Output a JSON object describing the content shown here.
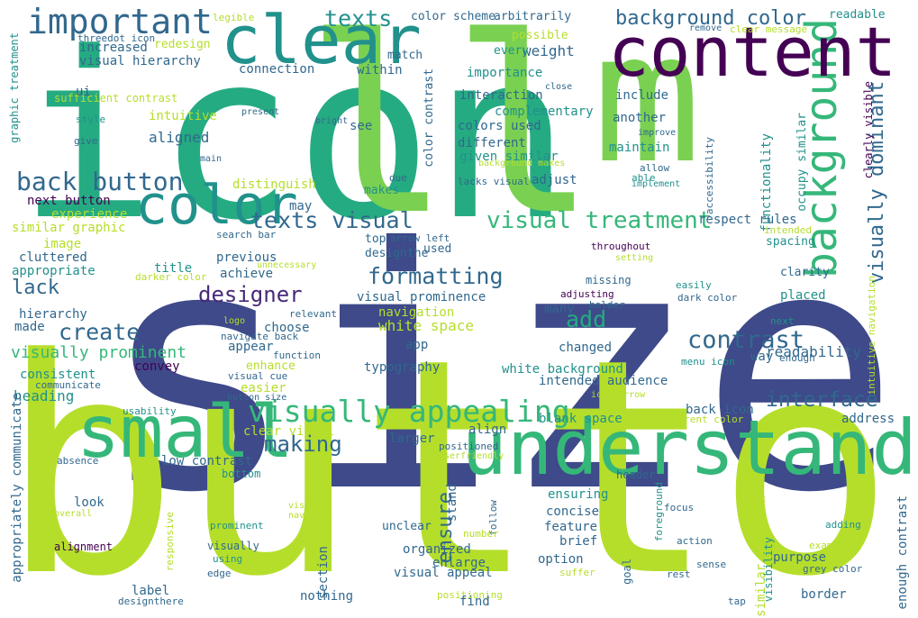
{
  "words": [
    {
      "text": "size",
      "color": "#3e4a89"
    },
    {
      "text": "button",
      "color": "#b5de2b"
    },
    {
      "text": "icon",
      "color": "#25ab82"
    },
    {
      "text": "ll",
      "color": "#7ad151"
    },
    {
      "text": "m",
      "color": "#7ad151"
    },
    {
      "text": "understand",
      "color": "#35b779"
    },
    {
      "text": "background",
      "color": "#35b779"
    },
    {
      "text": "content",
      "color": "#440154"
    },
    {
      "text": "clear",
      "color": "#21918c"
    },
    {
      "text": "small",
      "color": "#35b779"
    },
    {
      "text": "color",
      "color": "#21918c"
    },
    {
      "text": "important",
      "color": "#31688e"
    },
    {
      "text": "visually appealing",
      "color": "#35b779"
    },
    {
      "text": "back button",
      "color": "#31688e"
    },
    {
      "text": "visual treatment",
      "color": "#35b779"
    },
    {
      "text": "texts visual",
      "color": "#31688e"
    },
    {
      "text": "designer",
      "color": "#482878"
    },
    {
      "text": "formatting",
      "color": "#31688e"
    },
    {
      "text": "contrast",
      "color": "#31688e"
    },
    {
      "text": "create",
      "color": "#31688e"
    },
    {
      "text": "texts",
      "color": "#21918c"
    },
    {
      "text": "background color",
      "color": "#31688e"
    },
    {
      "text": "visually dominant",
      "color": "#31688e"
    },
    {
      "text": "interface",
      "color": "#31688e"
    },
    {
      "text": "add",
      "color": "#25ab82"
    },
    {
      "text": "making",
      "color": "#31688e"
    },
    {
      "text": "ensure",
      "color": "#31688e"
    },
    {
      "text": "lack",
      "color": "#31688e"
    },
    {
      "text": "visually prominent",
      "color": "#35b779"
    },
    {
      "text": "readability",
      "color": "#31688e"
    },
    {
      "text": "heading",
      "color": "#21918c"
    },
    {
      "text": "weight",
      "color": "#31688e"
    },
    {
      "text": "navigation",
      "color": "#b5de2b"
    },
    {
      "text": "white space",
      "color": "#b5de2b"
    },
    {
      "text": "aligned",
      "color": "#31688e"
    },
    {
      "text": "visual hierarchy",
      "color": "#31688e"
    },
    {
      "text": "increased",
      "color": "#31688e"
    },
    {
      "text": "redesign",
      "color": "#b5de2b"
    },
    {
      "text": "sufficient contrast",
      "color": "#b5de2b"
    },
    {
      "text": "threedot icon",
      "color": "#31688e"
    },
    {
      "text": "legible",
      "color": "#b5de2b"
    },
    {
      "text": "color scheme",
      "color": "#31688e"
    },
    {
      "text": "arbitrarily",
      "color": "#31688e"
    },
    {
      "text": "readable",
      "color": "#21918c"
    },
    {
      "text": "remove",
      "color": "#31688e"
    },
    {
      "text": "clear message",
      "color": "#b5de2b"
    },
    {
      "text": "possible",
      "color": "#b5de2b"
    },
    {
      "text": "match",
      "color": "#31688e"
    },
    {
      "text": "every",
      "color": "#21918c"
    },
    {
      "text": "connection",
      "color": "#31688e"
    },
    {
      "text": "within",
      "color": "#31688e"
    },
    {
      "text": "importance",
      "color": "#21918c"
    },
    {
      "text": "include",
      "color": "#31688e"
    },
    {
      "text": "close",
      "color": "#31688e"
    },
    {
      "text": "interaction",
      "color": "#31688e"
    },
    {
      "text": "ui",
      "color": "#31688e"
    },
    {
      "text": "complementary",
      "color": "#21918c"
    },
    {
      "text": "intuitive",
      "color": "#b5de2b"
    },
    {
      "text": "present",
      "color": "#31688e"
    },
    {
      "text": "style",
      "color": "#21918c"
    },
    {
      "text": "give",
      "color": "#31688e"
    },
    {
      "text": "bright",
      "color": "#31688e"
    },
    {
      "text": "see",
      "color": "#31688e"
    },
    {
      "text": "colors used",
      "color": "#31688e"
    },
    {
      "text": "another",
      "color": "#31688e"
    },
    {
      "text": "improve",
      "color": "#31688e"
    },
    {
      "text": "main",
      "color": "#31688e"
    },
    {
      "text": "color contrast",
      "color": "#31688e"
    },
    {
      "text": "different",
      "color": "#31688e"
    },
    {
      "text": "given similar",
      "color": "#21918c"
    },
    {
      "text": "background makes",
      "color": "#b5de2b"
    },
    {
      "text": "maintain",
      "color": "#21918c"
    },
    {
      "text": "able",
      "color": "#21918c"
    },
    {
      "text": "allow",
      "color": "#31688e"
    },
    {
      "text": "implement",
      "color": "#21918c"
    },
    {
      "text": "distinguish",
      "color": "#b5de2b"
    },
    {
      "text": "due",
      "color": "#31688e"
    },
    {
      "text": "lacks visual",
      "color": "#31688e"
    },
    {
      "text": "adjust",
      "color": "#31688e"
    },
    {
      "text": "makes",
      "color": "#21918c"
    },
    {
      "text": "next button",
      "color": "#440154"
    },
    {
      "text": "experience",
      "color": "#b5de2b"
    },
    {
      "text": "may",
      "color": "#31688e"
    },
    {
      "text": "similar graphic",
      "color": "#b5de2b"
    },
    {
      "text": "image",
      "color": "#b5de2b"
    },
    {
      "text": "search bar",
      "color": "#31688e"
    },
    {
      "text": "top",
      "color": "#31688e"
    },
    {
      "text": "arrow left",
      "color": "#31688e"
    },
    {
      "text": "designthe",
      "color": "#31688e"
    },
    {
      "text": "used",
      "color": "#31688e"
    },
    {
      "text": "throughout",
      "color": "#440154"
    },
    {
      "text": "setting",
      "color": "#b5de2b"
    },
    {
      "text": "respect rules",
      "color": "#31688e"
    },
    {
      "text": "spacing",
      "color": "#21918c"
    },
    {
      "text": "functionality",
      "color": "#21918c"
    },
    {
      "text": "occupy similar",
      "color": "#21918c"
    },
    {
      "text": "clearly visible",
      "color": "#440154"
    },
    {
      "text": "intended",
      "color": "#b5de2b"
    },
    {
      "text": "intuitive navigation",
      "color": "#b5de2b"
    },
    {
      "text": "accessibility",
      "color": "#31688e"
    },
    {
      "text": "appropriate",
      "color": "#21918c"
    },
    {
      "text": "title",
      "color": "#21918c"
    },
    {
      "text": "previous",
      "color": "#31688e"
    },
    {
      "text": "cluttered",
      "color": "#31688e"
    },
    {
      "text": "darker color",
      "color": "#b5de2b"
    },
    {
      "text": "unnecessary",
      "color": "#b5de2b"
    },
    {
      "text": "achieve",
      "color": "#31688e"
    },
    {
      "text": "missing",
      "color": "#31688e"
    },
    {
      "text": "clarity",
      "color": "#31688e"
    },
    {
      "text": "easily",
      "color": "#21918c"
    },
    {
      "text": "adjusting",
      "color": "#440154"
    },
    {
      "text": "dark color",
      "color": "#31688e"
    },
    {
      "text": "placed",
      "color": "#21918c"
    },
    {
      "text": "bolder",
      "color": "#31688e"
    },
    {
      "text": "many",
      "color": "#31688e"
    },
    {
      "text": "visual prominence",
      "color": "#31688e"
    },
    {
      "text": "hierarchy",
      "color": "#31688e"
    },
    {
      "text": "made",
      "color": "#31688e"
    },
    {
      "text": "relevant",
      "color": "#31688e"
    },
    {
      "text": "logo",
      "color": "#b5de2b"
    },
    {
      "text": "choose",
      "color": "#31688e"
    },
    {
      "text": "navigate back",
      "color": "#31688e"
    },
    {
      "text": "next",
      "color": "#21918c"
    },
    {
      "text": "appear",
      "color": "#31688e"
    },
    {
      "text": "app",
      "color": "#31688e"
    },
    {
      "text": "changed",
      "color": "#31688e"
    },
    {
      "text": "way",
      "color": "#31688e"
    },
    {
      "text": "enough",
      "color": "#31688e"
    },
    {
      "text": "menu icon",
      "color": "#21918c"
    },
    {
      "text": "function",
      "color": "#31688e"
    },
    {
      "text": "convey",
      "color": "#440154"
    },
    {
      "text": "enhance",
      "color": "#b5de2b"
    },
    {
      "text": "typography",
      "color": "#31688e"
    },
    {
      "text": "white background",
      "color": "#21918c"
    },
    {
      "text": "consistent",
      "color": "#21918c"
    },
    {
      "text": "communicate",
      "color": "#31688e"
    },
    {
      "text": "easier",
      "color": "#b5de2b"
    },
    {
      "text": "visual cue",
      "color": "#31688e"
    },
    {
      "text": "intended audience",
      "color": "#31688e"
    },
    {
      "text": "icon arrow",
      "color": "#b5de2b"
    },
    {
      "text": "back icon",
      "color": "#31688e"
    },
    {
      "text": "address",
      "color": "#31688e"
    },
    {
      "text": "button size",
      "color": "#31688e"
    },
    {
      "text": "blank space",
      "color": "#21918c"
    },
    {
      "text": "align",
      "color": "#31688e"
    },
    {
      "text": "different color",
      "color": "#b5de2b"
    },
    {
      "text": "usability",
      "color": "#21918c"
    },
    {
      "text": "clear visual",
      "color": "#b5de2b"
    },
    {
      "text": "larger",
      "color": "#31688e"
    },
    {
      "text": "positioned",
      "color": "#31688e"
    },
    {
      "text": "appropriately communicate",
      "color": "#31688e"
    },
    {
      "text": "absence",
      "color": "#31688e"
    },
    {
      "text": "low contrast",
      "color": "#31688e"
    },
    {
      "text": "userfriendly",
      "color": "#b5de2b"
    },
    {
      "text": "bottom",
      "color": "#21918c"
    },
    {
      "text": "header",
      "color": "#31688e"
    },
    {
      "text": "look",
      "color": "#31688e"
    },
    {
      "text": "ensuring",
      "color": "#21918c"
    },
    {
      "text": "overall",
      "color": "#b5de2b"
    },
    {
      "text": "visible",
      "color": "#b5de2b"
    },
    {
      "text": "navigate",
      "color": "#b5de2b"
    },
    {
      "text": "concise",
      "color": "#31688e"
    },
    {
      "text": "focus",
      "color": "#31688e"
    },
    {
      "text": "stand",
      "color": "#31688e"
    },
    {
      "text": "follow",
      "color": "#31688e"
    },
    {
      "text": "prominent",
      "color": "#21918c"
    },
    {
      "text": "unclear",
      "color": "#31688e"
    },
    {
      "text": "feature",
      "color": "#31688e"
    },
    {
      "text": "foreground",
      "color": "#21918c"
    },
    {
      "text": "adding",
      "color": "#21918c"
    },
    {
      "text": "responsive",
      "color": "#b5de2b"
    },
    {
      "text": "number",
      "color": "#b5de2b"
    },
    {
      "text": "brief",
      "color": "#31688e"
    },
    {
      "text": "action",
      "color": "#31688e"
    },
    {
      "text": "similar position",
      "color": "#b5de2b"
    },
    {
      "text": "enough contrast",
      "color": "#31688e"
    },
    {
      "text": "alignment",
      "color": "#440154"
    },
    {
      "text": "visually",
      "color": "#31688e"
    },
    {
      "text": "section",
      "color": "#31688e"
    },
    {
      "text": "organized",
      "color": "#31688e"
    },
    {
      "text": "enlarge",
      "color": "#31688e"
    },
    {
      "text": "example",
      "color": "#b5de2b"
    },
    {
      "text": "using",
      "color": "#21918c"
    },
    {
      "text": "option",
      "color": "#31688e"
    },
    {
      "text": "purpose",
      "color": "#31688e"
    },
    {
      "text": "sense",
      "color": "#31688e"
    },
    {
      "text": "visibility",
      "color": "#21918c"
    },
    {
      "text": "grey color",
      "color": "#31688e"
    },
    {
      "text": "edge",
      "color": "#31688e"
    },
    {
      "text": "visual appeal",
      "color": "#31688e"
    },
    {
      "text": "suffer",
      "color": "#b5de2b"
    },
    {
      "text": "rest",
      "color": "#31688e"
    },
    {
      "text": "goal",
      "color": "#31688e"
    },
    {
      "text": "label",
      "color": "#31688e"
    },
    {
      "text": "positioning",
      "color": "#b5de2b"
    },
    {
      "text": "border",
      "color": "#31688e"
    },
    {
      "text": "nothing",
      "color": "#31688e"
    },
    {
      "text": "find",
      "color": "#31688e"
    },
    {
      "text": "tap",
      "color": "#31688e"
    },
    {
      "text": "designthere",
      "color": "#31688e"
    },
    {
      "text": "graphic treatment",
      "color": "#21918c"
    }
  ]
}
